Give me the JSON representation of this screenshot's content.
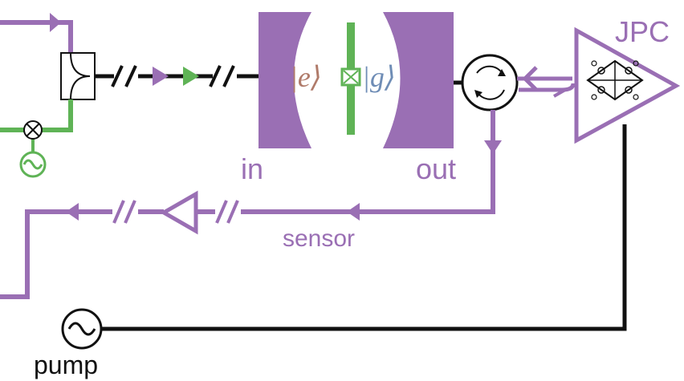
{
  "labels": {
    "jpc": "JPC",
    "in": "in",
    "out": "out",
    "sensor": "sensor",
    "pump": "pump",
    "state_e": "|e⟩",
    "state_g": "|g⟩"
  },
  "colors": {
    "purple": "#9a6fb4",
    "green": "#5fb356",
    "black": "#111111",
    "state_e": "#b07b6a",
    "state_g": "#6f8db6"
  },
  "icons": {
    "source": "sine-source-icon",
    "mixer": "mixer-icon",
    "circulator": "circulator-icon",
    "amplifier": "amplifier-triangle-icon",
    "junction": "josephson-junction-icon",
    "coupler": "directional-coupler-icon"
  }
}
